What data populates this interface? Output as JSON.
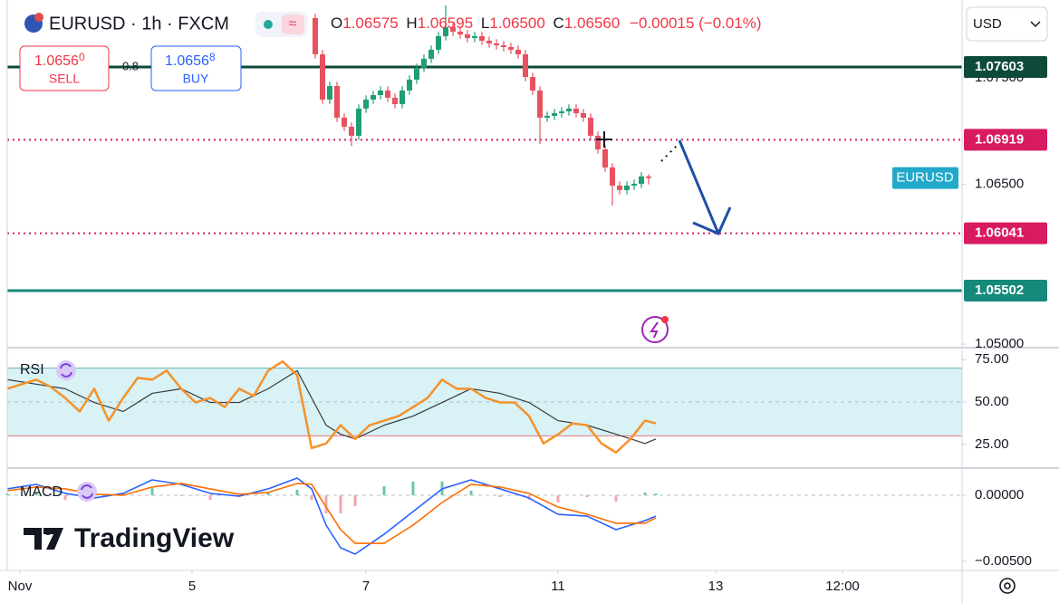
{
  "header": {
    "symbol": "EURUSD · 1h · FXCM",
    "o_label": "O",
    "o": "1.06575",
    "h_label": "H",
    "h": "1.06595",
    "l_label": "L",
    "l": "1.06500",
    "c_label": "C",
    "c": "1.06560",
    "change": "−0.00015 (−0.01%)"
  },
  "trade": {
    "sell_main": "1.0656",
    "sell_pip": "0",
    "sell_label": "SELL",
    "spread": "0.8",
    "buy_main": "1.0656",
    "buy_pip": "8",
    "buy_label": "BUY"
  },
  "currency": "USD",
  "rsi_label": "RSI",
  "macd_label": "MACD",
  "brand": "TradingView",
  "chart_data": [
    {
      "type": "candlestick",
      "xlim": [
        0,
        263.5
      ],
      "ylim": [
        1.04975,
        1.08232
      ],
      "xticks": [
        {
          "value": 3.5,
          "label": "Nov"
        },
        {
          "value": 51,
          "label": "5"
        },
        {
          "value": 99,
          "label": "7"
        },
        {
          "value": 152,
          "label": "11"
        },
        {
          "value": 195.5,
          "label": "13"
        },
        {
          "value": 230.5,
          "label": "12:00"
        }
      ],
      "yticks": [
        {
          "value": 1.075,
          "label": "1.07500"
        },
        {
          "value": 1.065,
          "label": "1.06500"
        },
        {
          "value": 1.05,
          "label": "1.05000"
        }
      ],
      "up_color": "#1f9e72",
      "down_color": "#e8515f",
      "levels": [
        {
          "value": 1.07603,
          "color": "#0d4a3a",
          "style": "solid"
        },
        {
          "value": 1.06919,
          "color": "#d81b60",
          "style": "dotted"
        },
        {
          "value": 1.06041,
          "color": "#d81b60",
          "style": "dotted"
        },
        {
          "value": 1.05502,
          "color": "#15897a",
          "style": "solid"
        }
      ],
      "series": [
        {
          "name": "EURUSD",
          "color": "#22a9c9",
          "x": [
            85,
            87,
            89,
            91,
            93,
            95,
            97,
            99,
            101,
            103,
            105,
            107,
            109,
            111,
            113,
            115,
            117,
            119,
            121,
            123,
            125,
            127,
            129,
            131,
            133,
            135,
            137,
            139,
            141,
            143,
            145,
            147,
            149,
            151,
            153,
            155,
            157,
            159,
            161,
            163,
            165,
            167,
            169,
            171,
            173,
            175,
            177
          ],
          "open": [
            1.08062,
            1.07722,
            1.07297,
            1.07424,
            1.07127,
            1.07042,
            1.06957,
            1.07212,
            1.07297,
            1.07339,
            1.07382,
            1.07314,
            1.07254,
            1.07382,
            1.07484,
            1.07595,
            1.0768,
            1.07765,
            1.07892,
            1.07977,
            1.07935,
            1.07909,
            1.07875,
            1.07892,
            1.0785,
            1.07824,
            1.07807,
            1.0779,
            1.07765,
            1.07722,
            1.07509,
            1.07382,
            1.07127,
            1.07144,
            1.07169,
            1.07186,
            1.07212,
            1.07169,
            1.07127,
            1.06957,
            1.06829,
            1.06659,
            1.06489,
            1.06447,
            1.06489,
            1.06506,
            1.06575
          ],
          "high": [
            1.08102,
            1.07762,
            1.07464,
            1.07464,
            1.07167,
            1.07082,
            1.07252,
            1.07337,
            1.07379,
            1.07422,
            1.07422,
            1.07354,
            1.07422,
            1.07524,
            1.07635,
            1.0772,
            1.07805,
            1.07932,
            1.0818,
            1.08017,
            1.07975,
            1.07949,
            1.07932,
            1.07932,
            1.0789,
            1.07864,
            1.07847,
            1.0783,
            1.07805,
            1.07762,
            1.07549,
            1.07422,
            1.07184,
            1.07209,
            1.07226,
            1.07252,
            1.07252,
            1.07209,
            1.07167,
            1.06997,
            1.06869,
            1.06699,
            1.06529,
            1.06529,
            1.06546,
            1.06615,
            1.06595
          ],
          "low": [
            1.07682,
            1.07257,
            1.07257,
            1.07087,
            1.07002,
            1.0686,
            1.06917,
            1.07172,
            1.07257,
            1.07299,
            1.07274,
            1.07214,
            1.07214,
            1.07342,
            1.07444,
            1.07555,
            1.0764,
            1.07725,
            1.07852,
            1.07895,
            1.07869,
            1.07835,
            1.07835,
            1.0781,
            1.07784,
            1.07767,
            1.0775,
            1.07725,
            1.07682,
            1.07469,
            1.07342,
            1.0688,
            1.07087,
            1.07104,
            1.07129,
            1.07146,
            1.07129,
            1.07087,
            1.06917,
            1.06789,
            1.06619,
            1.063,
            1.06407,
            1.06407,
            1.06449,
            1.06466,
            1.065
          ],
          "close": [
            1.07722,
            1.07297,
            1.07424,
            1.07127,
            1.07042,
            1.06957,
            1.07212,
            1.07297,
            1.07339,
            1.07382,
            1.07314,
            1.07254,
            1.07382,
            1.07484,
            1.07595,
            1.0768,
            1.07765,
            1.07892,
            1.07977,
            1.07935,
            1.07909,
            1.07875,
            1.07892,
            1.0785,
            1.07824,
            1.07807,
            1.0779,
            1.07765,
            1.07722,
            1.07509,
            1.07382,
            1.07127,
            1.07144,
            1.07169,
            1.07186,
            1.07212,
            1.07169,
            1.07127,
            1.06957,
            1.06829,
            1.06659,
            1.06489,
            1.06447,
            1.06489,
            1.06506,
            1.06575,
            1.0656
          ]
        }
      ]
    },
    {
      "type": "line",
      "xlim": [
        0,
        263.5
      ],
      "ylim": [
        11,
        81.5
      ],
      "yticks": [
        {
          "value": 75,
          "label": "75.00"
        },
        {
          "value": 50,
          "label": "50.00"
        },
        {
          "value": 25,
          "label": "25.00"
        }
      ],
      "band": [
        30,
        70
      ],
      "band_color": "#d8f2f5",
      "grid": true,
      "series": [
        {
          "color": "#f5922a",
          "x": [
            0,
            4,
            8,
            12,
            16,
            20,
            24,
            28,
            32,
            36,
            40,
            44,
            48,
            52,
            56,
            60,
            64,
            68,
            72,
            76,
            80,
            84,
            88,
            92,
            96,
            100,
            104,
            108,
            112,
            116,
            120,
            124,
            128,
            132,
            136,
            140,
            144,
            148,
            152,
            156,
            160,
            164,
            168,
            172,
            176,
            179
          ],
          "values": [
            57.8,
            60.5,
            63.2,
            58.9,
            52.4,
            44.4,
            57.8,
            39.0,
            52.4,
            64.2,
            63.2,
            68.5,
            57.8,
            49.7,
            52.4,
            47.0,
            57.8,
            53.5,
            68.5,
            73.9,
            65.9,
            22.8,
            25.5,
            36.3,
            28.2,
            36.3,
            39.0,
            41.7,
            47.0,
            52.4,
            63.2,
            57.8,
            57.8,
            52.4,
            49.7,
            49.7,
            41.7,
            25.5,
            30.9,
            37.4,
            36.3,
            25.5,
            20.2,
            28.2,
            39.0,
            37.4
          ]
        },
        {
          "color": "#3a3a3a",
          "x": [
            0,
            8,
            16,
            24,
            32,
            40,
            48,
            56,
            64,
            72,
            80,
            84,
            88,
            92,
            96,
            104,
            112,
            120,
            128,
            136,
            144,
            152,
            160,
            168,
            176,
            179
          ],
          "values": [
            63.2,
            60.5,
            57.8,
            49.7,
            44.4,
            55.1,
            57.8,
            49.7,
            49.7,
            57.8,
            68.5,
            52.4,
            36.3,
            31.0,
            28.2,
            36.3,
            41.7,
            49.7,
            57.8,
            55.1,
            49.7,
            39.0,
            36.3,
            31.0,
            25.5,
            28.2
          ]
        }
      ]
    },
    {
      "type": "macd",
      "xlim": [
        0,
        263.5
      ],
      "ylim": [
        -0.00568,
        0.00205
      ],
      "yticks": [
        {
          "value": 0,
          "label": "0.00000"
        },
        {
          "value": -0.005,
          "label": "−0.00500"
        }
      ],
      "x": [
        0,
        8,
        16,
        24,
        32,
        40,
        48,
        56,
        64,
        72,
        80,
        84,
        88,
        92,
        96,
        104,
        112,
        120,
        128,
        136,
        144,
        152,
        160,
        168,
        176,
        179
      ],
      "histogram": [
        0.00014,
        0.0002,
        -0.00034,
        -0.00028,
        0.00014,
        0.00054,
        -7e-05,
        -0.00034,
        -0.00014,
        0.00027,
        0.00041,
        -0.00034,
        -0.00137,
        -0.00137,
        -0.00082,
        0.00068,
        0.00103,
        0.00103,
        0.00034,
        -0.00014,
        -0.00035,
        -0.00055,
        -0.00014,
        -0.00048,
        0.0002,
        0.00013
      ],
      "up_color": "#6cc7ad",
      "down_color": "#f3a5ae",
      "series": [
        {
          "color": "#2962ff",
          "values": [
            0.00048,
            0.00082,
            0.00014,
            -0.00021,
            0.00014,
            0.00116,
            0.00082,
            0.00014,
            -7e-05,
            0.00048,
            0.0013,
            0.00048,
            -0.00226,
            -0.00397,
            -0.00445,
            -0.00295,
            -0.00123,
            0.00048,
            0.00116,
            0.00048,
            -0.00021,
            -0.00144,
            -0.00158,
            -0.0026,
            -0.00192,
            -0.00158
          ]
        },
        {
          "color": "#ff6d00",
          "values": [
            0.00034,
            0.00062,
            0.00048,
            7e-05,
            0,
            0.00062,
            0.00089,
            0.00048,
            7e-05,
            0.00021,
            0.00089,
            0.00082,
            -0.00089,
            -0.0026,
            -0.00363,
            -0.00363,
            -0.00226,
            -0.00055,
            0.00082,
            0.00062,
            0.00014,
            -0.00089,
            -0.00144,
            -0.00212,
            -0.00212,
            -0.00171
          ]
        }
      ]
    }
  ]
}
